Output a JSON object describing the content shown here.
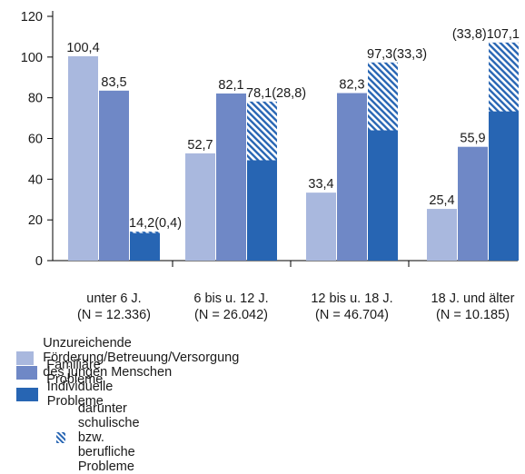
{
  "chart_data": {
    "type": "bar",
    "ylim": [
      0,
      120
    ],
    "yticks": [
      0,
      20,
      40,
      60,
      80,
      100,
      120
    ],
    "categories": [
      {
        "line1": "unter 6 J.",
        "line2": "(N = 12.336)"
      },
      {
        "line1": "6 bis u. 12 J.",
        "line2": "(N = 26.042)"
      },
      {
        "line1": "12 bis u. 18 J.",
        "line2": "(N = 46.704)"
      },
      {
        "line1": "18 J. und älter",
        "line2": "(N = 10.185)"
      }
    ],
    "series": [
      {
        "name": "Unzureichende Förderung/Betreuung/Versorgung des jungen Menschen",
        "color": "#a9b8de",
        "values": [
          100.4,
          52.7,
          33.4,
          25.4
        ],
        "labels": [
          "100,4",
          "52,7",
          "33,4",
          "25,4"
        ]
      },
      {
        "name": "Familiäre Probleme",
        "color": "#6f88c6",
        "values": [
          83.5,
          82.1,
          82.3,
          55.9
        ],
        "labels": [
          "83,5",
          "82,1",
          "82,3",
          "55,9"
        ]
      },
      {
        "name": "Individuelle Probleme",
        "color": "#2765b3",
        "values": [
          14.2,
          78.1,
          97.3,
          107.1
        ],
        "labels": [
          "14,2",
          "78,1",
          "97,3",
          "107,1"
        ]
      }
    ],
    "subset": {
      "name": "darunter schulische bzw. berufliche Probleme",
      "of_series": "Individuelle Probleme",
      "values": [
        0.4,
        28.8,
        33.3,
        33.8
      ],
      "labels": [
        "(0,4)",
        "(28,8)",
        "(33,3)",
        "(33,8)"
      ],
      "pattern": "diagonal-hatch"
    }
  }
}
